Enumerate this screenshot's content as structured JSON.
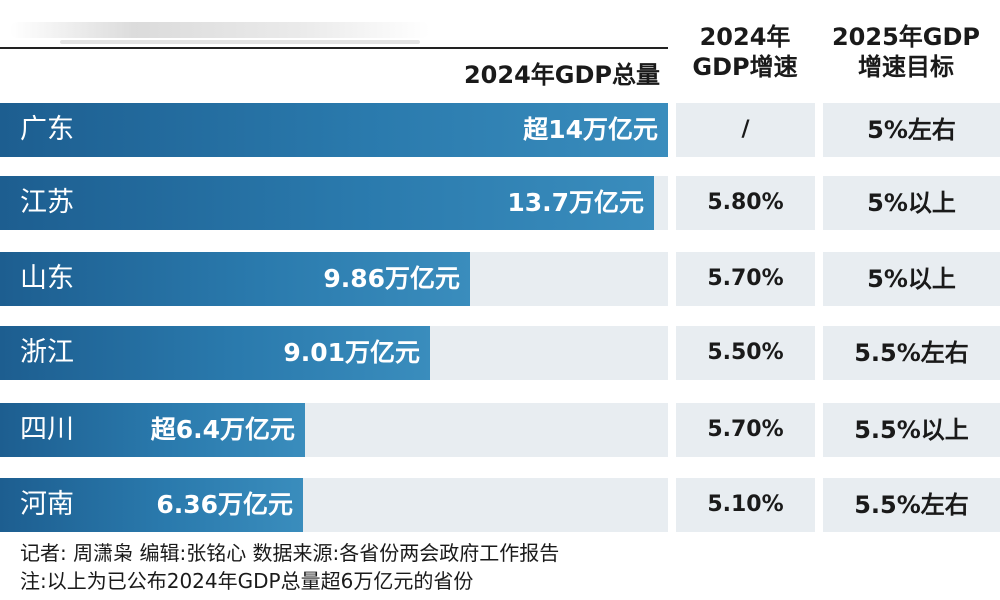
{
  "headers": {
    "total": "2024年GDP总量",
    "growth_2024": [
      "2024年",
      "GDP增速"
    ],
    "target_2025": [
      "2025年GDP",
      "增速目标"
    ]
  },
  "rows": [
    {
      "province": "广东",
      "value_label": "超14万亿元",
      "growth_2024": "/",
      "target_2025": "5%左右"
    },
    {
      "province": "江苏",
      "value_label": "13.7万亿元",
      "growth_2024": "5.80%",
      "target_2025": "5%以上"
    },
    {
      "province": "山东",
      "value_label": "9.86万亿元",
      "growth_2024": "5.70%",
      "target_2025": "5%以上"
    },
    {
      "province": "浙江",
      "value_label": "9.01万亿元",
      "growth_2024": "5.50%",
      "target_2025": "5.5%左右"
    },
    {
      "province": "四川",
      "value_label": "超6.4万亿元",
      "growth_2024": "5.70%",
      "target_2025": "5.5%以上"
    },
    {
      "province": "河南",
      "value_label": "6.36万亿元",
      "growth_2024": "5.10%",
      "target_2025": "5.5%左右"
    }
  ],
  "footer": {
    "credits": "记者: 周潇枭   编辑:张铭心   数据来源:各省份两会政府工作报告",
    "note": "注:以上为已公布2024年GDP总量超6万亿元的省份"
  },
  "colors": {
    "bar": "#2a7aad",
    "row_bg": "#e8edf1"
  },
  "chart_data": {
    "type": "bar",
    "orientation": "horizontal",
    "categories": [
      "广东",
      "江苏",
      "山东",
      "浙江",
      "四川",
      "河南"
    ],
    "series": [
      {
        "name": "2024年GDP总量",
        "values": [
          14.0,
          13.7,
          9.86,
          9.01,
          6.4,
          6.36
        ]
      }
    ],
    "xlim": [
      0,
      14
    ],
    "grid": false
  }
}
